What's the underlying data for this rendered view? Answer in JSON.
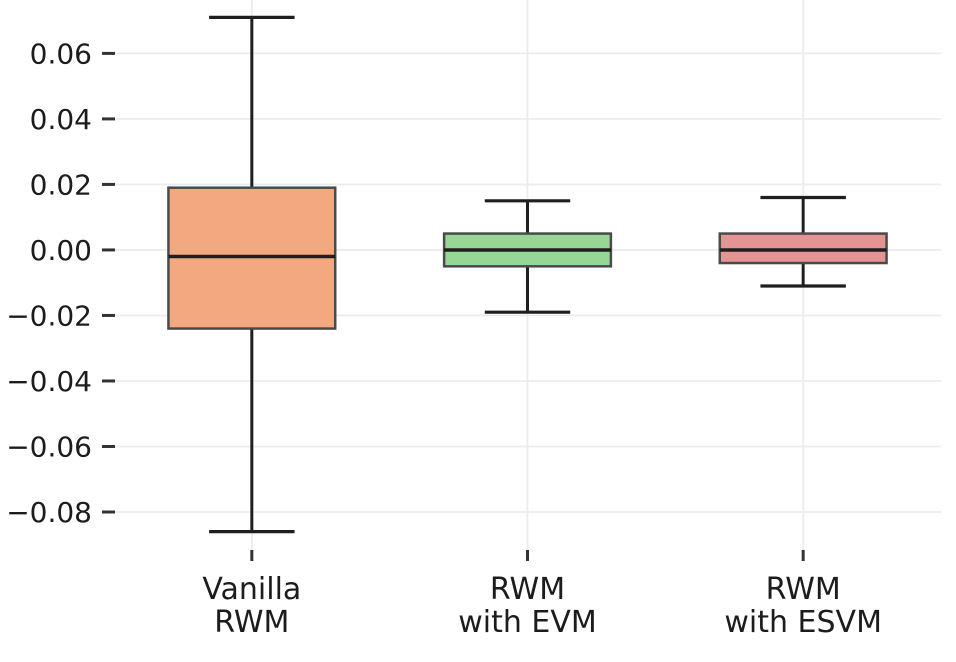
{
  "figure": {
    "background": "#ffffff"
  },
  "chart_data": {
    "type": "boxplot",
    "title": "",
    "xlabel": "",
    "ylabel": "",
    "grid": true,
    "legend": null,
    "ylim": [
      -0.0916,
      0.0763
    ],
    "yticks": [
      {
        "value": 0.06,
        "label": "0.06"
      },
      {
        "value": 0.04,
        "label": "0.04"
      },
      {
        "value": 0.02,
        "label": "0.02"
      },
      {
        "value": 0.0,
        "label": "0.00"
      },
      {
        "value": -0.02,
        "label": "−0.02"
      },
      {
        "value": -0.04,
        "label": "−0.04"
      },
      {
        "value": -0.06,
        "label": "−0.06"
      },
      {
        "value": -0.08,
        "label": "−0.08"
      }
    ],
    "categories": [
      "Vanilla RWM",
      "RWM with EVM",
      "RWM with ESVM"
    ],
    "boxes": [
      {
        "category": "Vanilla RWM",
        "label_lines": [
          "Vanilla",
          "RWM"
        ],
        "fill": "#f3a97f",
        "whisker_low": -0.086,
        "q1": -0.024,
        "median": -0.002,
        "q3": 0.019,
        "whisker_high": 0.071
      },
      {
        "category": "RWM with EVM",
        "label_lines": [
          "RWM",
          "with EVM"
        ],
        "fill": "#96d796",
        "whisker_low": -0.019,
        "q1": -0.005,
        "median": 0.0,
        "q3": 0.005,
        "whisker_high": 0.015
      },
      {
        "category": "RWM with ESVM",
        "label_lines": [
          "RWM",
          "with ESVM"
        ],
        "fill": "#e59494",
        "whisker_low": -0.011,
        "q1": -0.004,
        "median": 0.0,
        "q3": 0.005,
        "whisker_high": 0.016
      }
    ],
    "colors": {
      "grid": "#ececec",
      "tick": "#333333",
      "text": "#1c1c1c",
      "line": "#1f1f1f",
      "box_edge": "#4a4a4a"
    }
  }
}
